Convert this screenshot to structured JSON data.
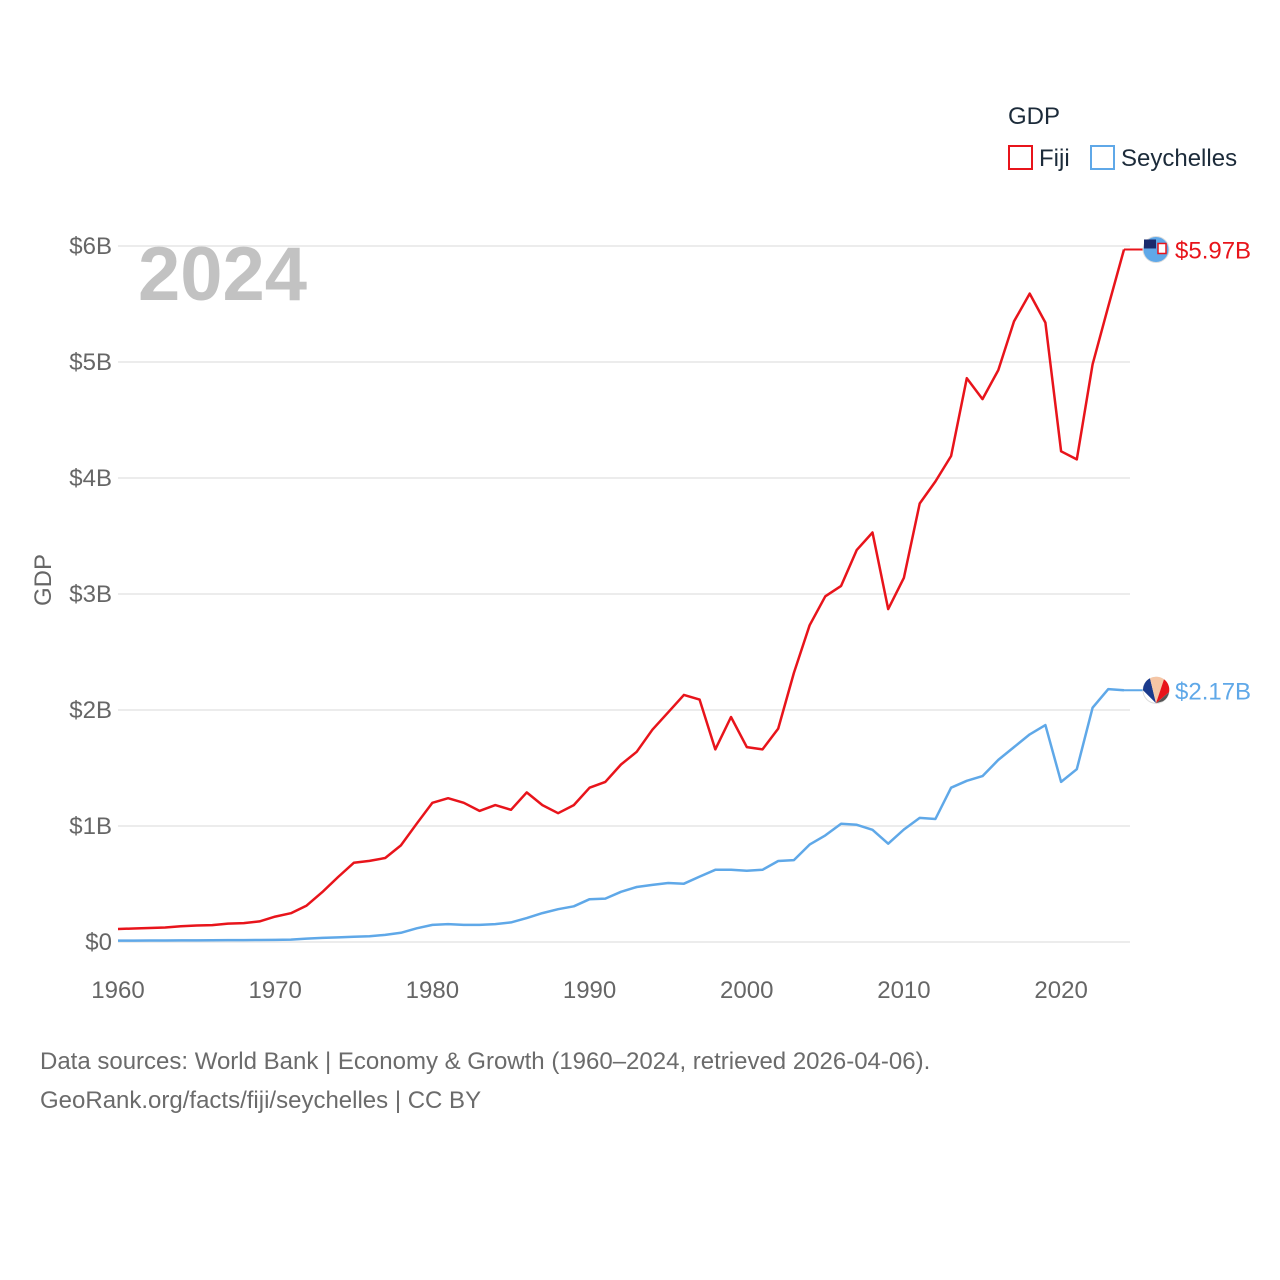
{
  "chart_data": {
    "type": "line",
    "title": "",
    "xlabel": "",
    "ylabel": "GDP",
    "year_label": "2024",
    "xlim": [
      1960,
      2025
    ],
    "ylim": [
      0,
      6000000000
    ],
    "x_ticks": [
      {
        "value": 1960,
        "label": "1960"
      },
      {
        "value": 1970,
        "label": "1970"
      },
      {
        "value": 1980,
        "label": "1980"
      },
      {
        "value": 1990,
        "label": "1990"
      },
      {
        "value": 2000,
        "label": "2000"
      },
      {
        "value": 2010,
        "label": "2010"
      },
      {
        "value": 2020,
        "label": "2020"
      }
    ],
    "y_ticks": [
      {
        "value": 0,
        "label": "$0"
      },
      {
        "value": 1000000000,
        "label": "$1B"
      },
      {
        "value": 2000000000,
        "label": "$2B"
      },
      {
        "value": 3000000000,
        "label": "$3B"
      },
      {
        "value": 4000000000,
        "label": "$4B"
      },
      {
        "value": 5000000000,
        "label": "$5B"
      },
      {
        "value": 6000000000,
        "label": "$6B"
      }
    ],
    "legend": {
      "title": "GDP",
      "position": "top-right"
    },
    "x": [
      1960,
      1961,
      1962,
      1963,
      1964,
      1965,
      1966,
      1967,
      1968,
      1969,
      1970,
      1971,
      1972,
      1973,
      1974,
      1975,
      1976,
      1977,
      1978,
      1979,
      1980,
      1981,
      1982,
      1983,
      1984,
      1985,
      1986,
      1987,
      1988,
      1989,
      1990,
      1991,
      1992,
      1993,
      1994,
      1995,
      1996,
      1997,
      1998,
      1999,
      2000,
      2001,
      2002,
      2003,
      2004,
      2005,
      2006,
      2007,
      2008,
      2009,
      2010,
      2011,
      2012,
      2013,
      2014,
      2015,
      2016,
      2017,
      2018,
      2019,
      2020,
      2021,
      2022,
      2023,
      2024
    ],
    "series": [
      {
        "name": "Fiji",
        "color": "#e8141b",
        "end_label": "$5.97B",
        "values": [
          112000000,
          116000000,
          121000000,
          125000000,
          135000000,
          142000000,
          146000000,
          159000000,
          163000000,
          178000000,
          219000000,
          248000000,
          314000000,
          430000000,
          560000000,
          683000000,
          699000000,
          724000000,
          833000000,
          1020000000,
          1200000000,
          1240000000,
          1200000000,
          1130000000,
          1180000000,
          1140000000,
          1290000000,
          1180000000,
          1110000000,
          1180000000,
          1330000000,
          1380000000,
          1530000000,
          1640000000,
          1830000000,
          1980000000,
          2130000000,
          2090000000,
          1660000000,
          1940000000,
          1680000000,
          1660000000,
          1840000000,
          2320000000,
          2730000000,
          2980000000,
          3070000000,
          3380000000,
          3530000000,
          2870000000,
          3140000000,
          3780000000,
          3970000000,
          4190000000,
          4860000000,
          4680000000,
          4930000000,
          5350000000,
          5590000000,
          5340000000,
          4230000000,
          4160000000,
          4980000000,
          5480000000,
          5970000000
        ]
      },
      {
        "name": "Seychelles",
        "color": "#5fa8e8",
        "end_label": "$2.17B",
        "values": [
          12000000,
          12000000,
          13000000,
          13000000,
          14000000,
          14000000,
          15000000,
          16000000,
          16000000,
          17000000,
          18000000,
          21000000,
          29000000,
          35000000,
          40000000,
          46000000,
          50000000,
          61000000,
          79000000,
          118000000,
          147000000,
          154000000,
          147000000,
          147000000,
          154000000,
          169000000,
          206000000,
          249000000,
          283000000,
          308000000,
          369000000,
          374000000,
          433000000,
          474000000,
          492000000,
          509000000,
          503000000,
          564000000,
          622000000,
          622000000,
          614000000,
          622000000,
          698000000,
          706000000,
          840000000,
          919000000,
          1020000000,
          1010000000,
          967000000,
          847000000,
          970000000,
          1070000000,
          1060000000,
          1330000000,
          1390000000,
          1430000000,
          1570000000,
          1680000000,
          1790000000,
          1870000000,
          1380000000,
          1490000000,
          2020000000,
          2180000000,
          2170000000
        ]
      }
    ]
  },
  "footer": {
    "line1": "Data sources: World Bank | Economy & Growth (1960–2024, retrieved 2026-04-06).",
    "line2": "GeoRank.org/facts/fiji/seychelles | CC BY"
  }
}
